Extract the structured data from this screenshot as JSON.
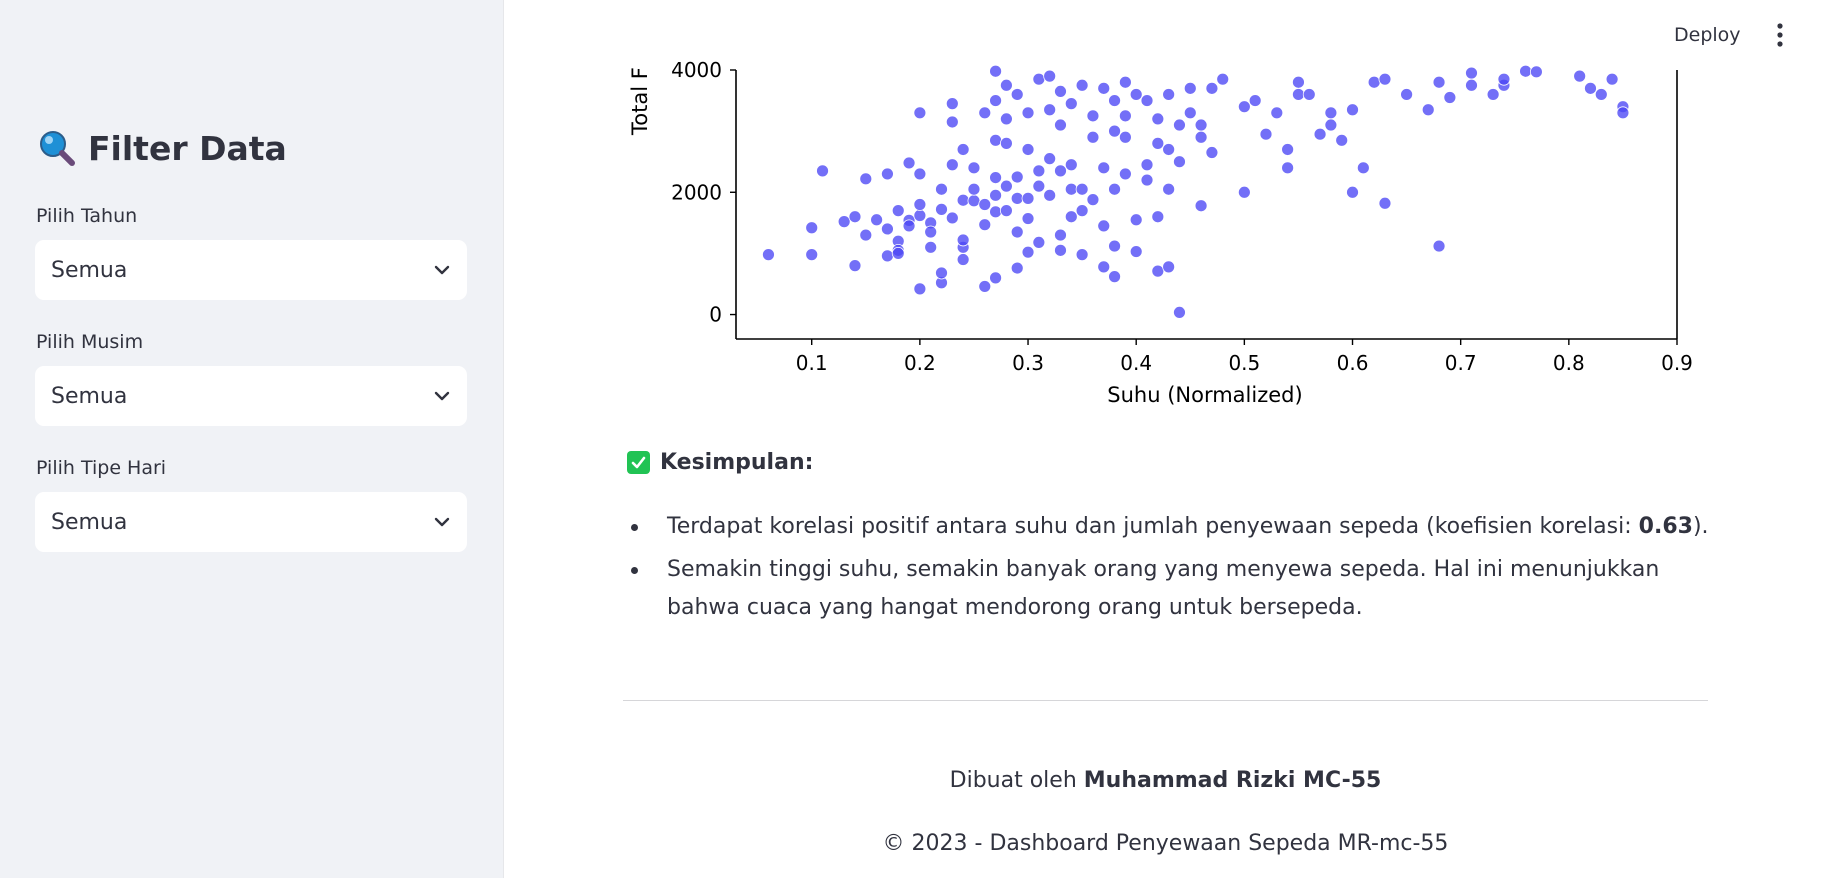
{
  "sidebar": {
    "title": "Filter Data",
    "title_icon": "magnifier-icon",
    "filters": [
      {
        "label": "Pilih Tahun",
        "value": "Semua"
      },
      {
        "label": "Pilih Musim",
        "value": "Semua"
      },
      {
        "label": "Pilih Tipe Hari",
        "value": "Semua"
      }
    ]
  },
  "toolbar": {
    "deploy_label": "Deploy",
    "menu_icon": "kebab-menu-icon"
  },
  "chart_data": {
    "type": "scatter",
    "xlabel": "Suhu (Normalized)",
    "ylabel_visible": "Total F",
    "xticks": [
      "0.1",
      "0.2",
      "0.3",
      "0.4",
      "0.5",
      "0.6",
      "0.7",
      "0.8",
      "0.9"
    ],
    "yticks": [
      "0",
      "2000",
      "4000"
    ],
    "xlim": [
      0.03,
      0.9
    ],
    "ylim_visible": [
      -400,
      4000
    ],
    "marker_color": "#4b47f5",
    "points": [
      [
        0.06,
        980
      ],
      [
        0.1,
        980
      ],
      [
        0.1,
        1420
      ],
      [
        0.11,
        2350
      ],
      [
        0.13,
        1520
      ],
      [
        0.14,
        800
      ],
      [
        0.14,
        1600
      ],
      [
        0.15,
        1300
      ],
      [
        0.15,
        2220
      ],
      [
        0.16,
        1550
      ],
      [
        0.17,
        1400
      ],
      [
        0.17,
        960
      ],
      [
        0.17,
        2300
      ],
      [
        0.18,
        1200
      ],
      [
        0.18,
        1050
      ],
      [
        0.18,
        1700
      ],
      [
        0.18,
        1000
      ],
      [
        0.19,
        1540
      ],
      [
        0.19,
        2480
      ],
      [
        0.19,
        1450
      ],
      [
        0.2,
        1620
      ],
      [
        0.2,
        1800
      ],
      [
        0.2,
        2300
      ],
      [
        0.2,
        3300
      ],
      [
        0.21,
        1500
      ],
      [
        0.21,
        1100
      ],
      [
        0.21,
        1350
      ],
      [
        0.2,
        420
      ],
      [
        0.22,
        1720
      ],
      [
        0.22,
        520
      ],
      [
        0.22,
        680
      ],
      [
        0.22,
        2050
      ],
      [
        0.23,
        2450
      ],
      [
        0.23,
        3150
      ],
      [
        0.23,
        3450
      ],
      [
        0.23,
        1580
      ],
      [
        0.24,
        1100
      ],
      [
        0.24,
        1220
      ],
      [
        0.24,
        900
      ],
      [
        0.24,
        2700
      ],
      [
        0.24,
        1870
      ],
      [
        0.25,
        1860
      ],
      [
        0.25,
        2050
      ],
      [
        0.25,
        2400
      ],
      [
        0.26,
        3300
      ],
      [
        0.26,
        460
      ],
      [
        0.26,
        1800
      ],
      [
        0.26,
        1470
      ],
      [
        0.27,
        2240
      ],
      [
        0.27,
        1950
      ],
      [
        0.27,
        1680
      ],
      [
        0.27,
        2850
      ],
      [
        0.27,
        3500
      ],
      [
        0.27,
        3980
      ],
      [
        0.27,
        600
      ],
      [
        0.28,
        2100
      ],
      [
        0.28,
        1700
      ],
      [
        0.28,
        2800
      ],
      [
        0.28,
        3200
      ],
      [
        0.28,
        3750
      ],
      [
        0.29,
        1900
      ],
      [
        0.29,
        1350
      ],
      [
        0.29,
        2250
      ],
      [
        0.29,
        760
      ],
      [
        0.29,
        3600
      ],
      [
        0.3,
        2700
      ],
      [
        0.3,
        1900
      ],
      [
        0.3,
        1570
      ],
      [
        0.3,
        1020
      ],
      [
        0.3,
        3300
      ],
      [
        0.31,
        2350
      ],
      [
        0.31,
        2100
      ],
      [
        0.31,
        3850
      ],
      [
        0.31,
        1180
      ],
      [
        0.32,
        1950
      ],
      [
        0.32,
        2550
      ],
      [
        0.32,
        3350
      ],
      [
        0.32,
        3900
      ],
      [
        0.33,
        1300
      ],
      [
        0.33,
        2350
      ],
      [
        0.33,
        3100
      ],
      [
        0.33,
        1050
      ],
      [
        0.33,
        3650
      ],
      [
        0.34,
        2050
      ],
      [
        0.34,
        2450
      ],
      [
        0.34,
        1600
      ],
      [
        0.34,
        3450
      ],
      [
        0.35,
        1700
      ],
      [
        0.35,
        2050
      ],
      [
        0.35,
        3750
      ],
      [
        0.35,
        980
      ],
      [
        0.36,
        2900
      ],
      [
        0.36,
        3250
      ],
      [
        0.36,
        1880
      ],
      [
        0.37,
        1450
      ],
      [
        0.37,
        2400
      ],
      [
        0.37,
        780
      ],
      [
        0.37,
        3700
      ],
      [
        0.38,
        2050
      ],
      [
        0.38,
        3000
      ],
      [
        0.38,
        3500
      ],
      [
        0.38,
        1120
      ],
      [
        0.38,
        620
      ],
      [
        0.39,
        3250
      ],
      [
        0.39,
        2300
      ],
      [
        0.39,
        2900
      ],
      [
        0.39,
        3800
      ],
      [
        0.4,
        1550
      ],
      [
        0.4,
        3600
      ],
      [
        0.4,
        1030
      ],
      [
        0.41,
        2450
      ],
      [
        0.41,
        2200
      ],
      [
        0.41,
        3500
      ],
      [
        0.42,
        2800
      ],
      [
        0.42,
        1600
      ],
      [
        0.42,
        3200
      ],
      [
        0.42,
        710
      ],
      [
        0.43,
        2700
      ],
      [
        0.43,
        3600
      ],
      [
        0.43,
        2050
      ],
      [
        0.43,
        780
      ],
      [
        0.44,
        3100
      ],
      [
        0.44,
        2500
      ],
      [
        0.44,
        35
      ],
      [
        0.45,
        3300
      ],
      [
        0.45,
        3700
      ],
      [
        0.46,
        2900
      ],
      [
        0.46,
        1780
      ],
      [
        0.46,
        3100
      ],
      [
        0.47,
        2650
      ],
      [
        0.47,
        3700
      ],
      [
        0.48,
        3850
      ],
      [
        0.5,
        3400
      ],
      [
        0.5,
        2000
      ],
      [
        0.51,
        3500
      ],
      [
        0.52,
        2950
      ],
      [
        0.53,
        3300
      ],
      [
        0.54,
        2700
      ],
      [
        0.54,
        2400
      ],
      [
        0.55,
        3800
      ],
      [
        0.55,
        3600
      ],
      [
        0.56,
        3600
      ],
      [
        0.57,
        2950
      ],
      [
        0.58,
        3300
      ],
      [
        0.58,
        3100
      ],
      [
        0.59,
        2850
      ],
      [
        0.6,
        3350
      ],
      [
        0.6,
        2000
      ],
      [
        0.61,
        2400
      ],
      [
        0.62,
        3800
      ],
      [
        0.63,
        3850
      ],
      [
        0.63,
        1820
      ],
      [
        0.65,
        3600
      ],
      [
        0.67,
        3350
      ],
      [
        0.68,
        3800
      ],
      [
        0.68,
        1120
      ],
      [
        0.69,
        3550
      ],
      [
        0.71,
        3950
      ],
      [
        0.71,
        3750
      ],
      [
        0.73,
        3600
      ],
      [
        0.74,
        3750
      ],
      [
        0.74,
        3850
      ],
      [
        0.76,
        3980
      ],
      [
        0.77,
        3970
      ],
      [
        0.81,
        3900
      ],
      [
        0.82,
        3700
      ],
      [
        0.83,
        3600
      ],
      [
        0.84,
        3850
      ],
      [
        0.85,
        3400
      ],
      [
        0.85,
        3300
      ]
    ]
  },
  "conclusion": {
    "title": "Kesimpulan:",
    "bullet1_prefix": "Terdapat korelasi positif antara suhu dan jumlah penyewaan sepeda (koefisien korelasi: ",
    "bullet1_value": "0.63",
    "bullet1_suffix": ").",
    "bullet2": "Semakin tinggi suhu, semakin banyak orang yang menyewa sepeda. Hal ini menunjukkan bahwa cuaca yang hangat mendorong orang untuk bersepeda."
  },
  "footer": {
    "made_by_prefix": "Dibuat oleh ",
    "author": "Muhammad Rizki MC-55",
    "copyright": "© 2023 - Dashboard Penyewaan Sepeda MR-mc-55"
  }
}
